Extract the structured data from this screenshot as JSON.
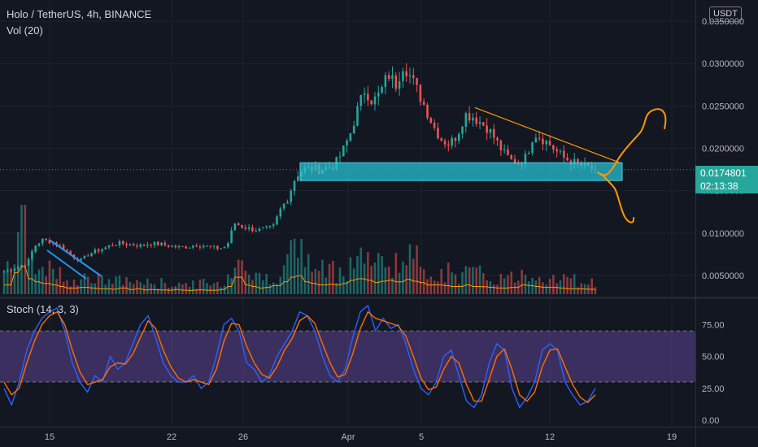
{
  "header": {
    "symbol_line": "Holo / TetherUS, 4h, BINANCE",
    "volume_indicator": "Vol (20)",
    "stoch_indicator": "Stoch (14, 3, 3)",
    "currency": "USDT"
  },
  "last_price": {
    "value": "0.0174801",
    "countdown": "02:13:38"
  },
  "colors": {
    "background": "#131722",
    "bull": "#26a69a",
    "bear": "#ef5350",
    "support_zone": "#26c6da",
    "volume_ma": "#ff9800",
    "stoch_k": "#2962ff",
    "stoch_d": "#ff6d00",
    "stoch_band": "#7e57c2",
    "drawing_orange": "#ff9800",
    "drawing_blue": "#2196f3",
    "grid": "#1e2230"
  },
  "chart_data": [
    {
      "type": "candlestick",
      "name": "price",
      "x_ticks": [
        "15",
        "22",
        "26",
        "Apr",
        "5",
        "12",
        "19"
      ],
      "y_ticks": [
        "0.0050000",
        "0.0100000",
        "0.0150000",
        "0.0200000",
        "0.0250000",
        "0.0300000",
        "0.0350000"
      ],
      "ylim": [
        0.0025,
        0.0375
      ],
      "price_line": 0.0174801,
      "support_zone": [
        0.0162,
        0.0183
      ],
      "trendline": [
        [
          0.0248,
          0.0183
        ]
      ],
      "close_path": [
        0.0055,
        0.0057,
        0.0061,
        0.0064,
        0.0085,
        0.0092,
        0.009,
        0.0087,
        0.008,
        0.0072,
        0.0068,
        0.0075,
        0.0079,
        0.0082,
        0.0086,
        0.0088,
        0.0087,
        0.0086,
        0.0085,
        0.0088,
        0.0087,
        0.0086,
        0.0084,
        0.0083,
        0.0084,
        0.0086,
        0.0085,
        0.0083,
        0.0082,
        0.0084,
        0.0112,
        0.0108,
        0.0105,
        0.0104,
        0.0105,
        0.0106,
        0.0128,
        0.0142,
        0.0168,
        0.0175,
        0.0176,
        0.0175,
        0.0177,
        0.018,
        0.0195,
        0.0215,
        0.0245,
        0.027,
        0.0255,
        0.0265,
        0.0288,
        0.0275,
        0.03,
        0.0283,
        0.0265,
        0.0245,
        0.0225,
        0.021,
        0.0205,
        0.0216,
        0.024,
        0.0238,
        0.0231,
        0.0224,
        0.021,
        0.0195,
        0.0186,
        0.0183,
        0.019,
        0.0218,
        0.0212,
        0.0205,
        0.0196,
        0.0188,
        0.0184,
        0.018,
        0.0178,
        0.0175
      ],
      "volume_path": [
        0.3,
        0.7,
        0.9,
        0.5,
        0.4,
        0.35,
        0.3,
        0.25,
        0.2,
        0.2,
        0.22,
        0.2,
        0.18,
        0.18,
        0.16,
        0.2,
        0.15,
        0.18,
        0.14,
        0.15,
        0.14,
        0.13,
        0.15,
        0.13,
        0.12,
        0.14,
        0.13,
        0.13,
        0.15,
        0.25,
        0.55,
        0.3,
        0.25,
        0.2,
        0.22,
        0.28,
        0.4,
        0.55,
        0.6,
        0.4,
        0.35,
        0.3,
        0.32,
        0.3,
        0.35,
        0.45,
        0.5,
        0.45,
        0.38,
        0.42,
        0.45,
        0.4,
        0.48,
        0.42,
        0.38,
        0.3,
        0.3,
        0.28,
        0.25,
        0.25,
        0.3,
        0.25,
        0.24,
        0.22,
        0.2,
        0.2,
        0.22,
        0.3,
        0.28,
        0.25,
        0.22,
        0.22,
        0.2,
        0.18,
        0.18,
        0.17,
        0.16,
        0.15
      ]
    },
    {
      "type": "line",
      "name": "Stoch (14, 3, 3)",
      "ylim": [
        -5,
        95
      ],
      "y_ticks": [
        "0.00",
        "25.00",
        "50.00",
        "75.00"
      ],
      "upper_band": 70,
      "lower_band": 30,
      "series": [
        {
          "values": [
            25,
            12,
            30,
            55,
            70,
            80,
            85,
            88,
            70,
            45,
            30,
            22,
            35,
            30,
            50,
            40,
            45,
            60,
            75,
            82,
            65,
            45,
            35,
            30,
            30,
            35,
            25,
            30,
            50,
            75,
            80,
            70,
            45,
            40,
            30,
            35,
            50,
            60,
            70,
            85,
            82,
            70,
            50,
            35,
            30,
            40,
            65,
            85,
            90,
            70,
            80,
            72,
            75,
            60,
            40,
            25,
            20,
            30,
            50,
            55,
            35,
            15,
            10,
            20,
            45,
            60,
            55,
            25,
            10,
            18,
            30,
            55,
            60,
            55,
            30,
            20,
            12,
            15,
            25
          ]
        },
        {
          "values": [
            30,
            20,
            25,
            45,
            62,
            75,
            82,
            85,
            75,
            55,
            38,
            28,
            30,
            32,
            42,
            45,
            44,
            52,
            65,
            78,
            72,
            55,
            42,
            33,
            30,
            32,
            30,
            28,
            40,
            62,
            76,
            75,
            58,
            45,
            36,
            33,
            42,
            55,
            64,
            78,
            82,
            76,
            60,
            45,
            34,
            36,
            52,
            72,
            85,
            80,
            78,
            76,
            74,
            66,
            50,
            33,
            24,
            26,
            40,
            50,
            45,
            28,
            15,
            15,
            32,
            50,
            56,
            40,
            20,
            15,
            22,
            42,
            55,
            56,
            42,
            28,
            18,
            14,
            20
          ]
        }
      ]
    }
  ]
}
